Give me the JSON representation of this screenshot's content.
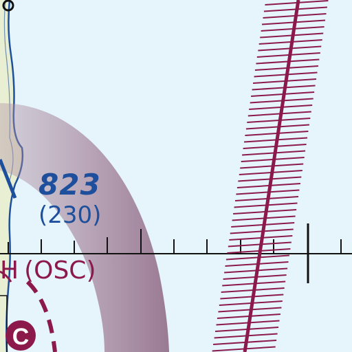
{
  "chart": {
    "obstacle": {
      "msl_elevation": "823",
      "agl_height": "(230)"
    },
    "airport": {
      "partial_name": "H",
      "identifier": "(OSC)"
    },
    "airport_symbol": {
      "letter": "C"
    },
    "colors": {
      "water_background": "#e6f5fb",
      "terrain_fill": "#e9efd2",
      "shoreline": "#1d4f9c",
      "airspace_magenta": "#8b1a4a",
      "tick_line": "#111111"
    }
  }
}
